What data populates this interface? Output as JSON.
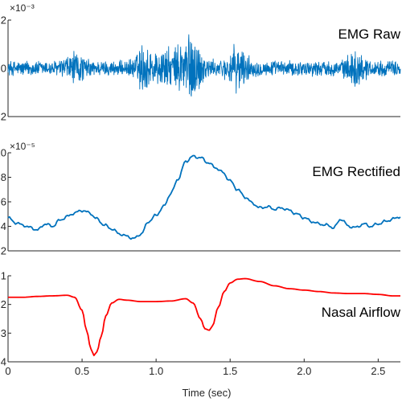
{
  "chart_data": [
    {
      "type": "line",
      "title": "EMG Raw",
      "exponent_label": "×10⁻³",
      "xlim": [
        0,
        2.65
      ],
      "ylim": [
        -2,
        2
      ],
      "yticks": [
        -2,
        0,
        2
      ],
      "ytick_labels": [
        "2",
        "0",
        "2"
      ],
      "color": "#0072BD",
      "signal": {
        "baseline_amplitude": 0.35,
        "bursts": [
          {
            "t": 0.45,
            "amp": 0.45,
            "width": 0.07
          },
          {
            "t": 0.92,
            "amp": 0.85,
            "width": 0.06
          },
          {
            "t": 1.22,
            "amp": 1.45,
            "width": 0.09
          },
          {
            "t": 1.05,
            "amp": 0.6,
            "width": 0.06
          },
          {
            "t": 1.55,
            "amp": 0.75,
            "width": 0.07
          },
          {
            "t": 2.35,
            "amp": 0.55,
            "width": 0.06
          }
        ]
      }
    },
    {
      "type": "line",
      "title": "EMG Rectified",
      "exponent_label": "×10⁻⁵",
      "xlim": [
        0,
        2.65
      ],
      "ylim": [
        2,
        10
      ],
      "yticks": [
        2,
        4,
        6,
        8,
        10
      ],
      "ytick_labels": [
        "2",
        "4",
        "6",
        "8",
        "10"
      ],
      "color": "#0072BD",
      "x": [
        0,
        0.05,
        0.1,
        0.15,
        0.2,
        0.25,
        0.3,
        0.35,
        0.4,
        0.45,
        0.5,
        0.55,
        0.6,
        0.65,
        0.7,
        0.75,
        0.8,
        0.85,
        0.9,
        0.95,
        1.0,
        1.05,
        1.1,
        1.15,
        1.2,
        1.25,
        1.3,
        1.35,
        1.4,
        1.45,
        1.5,
        1.55,
        1.6,
        1.65,
        1.7,
        1.75,
        1.8,
        1.85,
        1.9,
        1.95,
        2.0,
        2.05,
        2.1,
        2.15,
        2.2,
        2.25,
        2.3,
        2.35,
        2.4,
        2.45,
        2.5,
        2.55,
        2.6,
        2.65
      ],
      "values": [
        4.7,
        4.3,
        4.1,
        3.9,
        3.7,
        4.2,
        4.0,
        4.5,
        4.8,
        5.1,
        5.3,
        5.1,
        4.6,
        4.1,
        3.8,
        3.4,
        3.2,
        3.0,
        3.4,
        4.4,
        4.9,
        5.6,
        6.7,
        7.9,
        9.3,
        9.7,
        9.6,
        9.2,
        8.8,
        8.4,
        7.7,
        7.0,
        6.4,
        5.9,
        5.5,
        5.6,
        5.4,
        5.5,
        5.3,
        5.0,
        4.7,
        4.4,
        4.2,
        4.1,
        3.9,
        4.6,
        4.0,
        3.9,
        4.2,
        4.0,
        4.2,
        4.4,
        4.6,
        4.8
      ]
    },
    {
      "type": "line",
      "title": "Nasal Airflow",
      "exponent_label": "",
      "xlim": [
        0,
        2.65
      ],
      "ylim": [
        -4,
        -1
      ],
      "yticks": [
        -1,
        -2,
        -3,
        -4
      ],
      "ytick_labels": [
        "1",
        "2",
        "3",
        "4"
      ],
      "color": "#FF0000",
      "xlabel": "Time (sec)",
      "xticks": [
        0,
        0.5,
        1.0,
        1.5,
        2.0,
        2.5
      ],
      "xtick_labels": [
        "0",
        "0.5",
        "1.0",
        "1.5",
        "2.0",
        "2.5"
      ],
      "x": [
        0,
        0.1,
        0.2,
        0.3,
        0.4,
        0.45,
        0.5,
        0.53,
        0.56,
        0.58,
        0.6,
        0.63,
        0.66,
        0.7,
        0.75,
        0.8,
        0.9,
        1.0,
        1.1,
        1.2,
        1.25,
        1.3,
        1.33,
        1.36,
        1.38,
        1.42,
        1.46,
        1.5,
        1.55,
        1.6,
        1.7,
        1.8,
        1.9,
        2.0,
        2.1,
        2.2,
        2.3,
        2.4,
        2.5,
        2.6,
        2.65
      ],
      "values": [
        -1.75,
        -1.75,
        -1.72,
        -1.7,
        -1.68,
        -1.75,
        -2.2,
        -2.9,
        -3.55,
        -3.78,
        -3.65,
        -3.1,
        -2.4,
        -1.95,
        -1.82,
        -1.85,
        -1.9,
        -1.9,
        -1.88,
        -1.8,
        -1.95,
        -2.5,
        -2.85,
        -2.9,
        -2.75,
        -2.1,
        -1.55,
        -1.25,
        -1.12,
        -1.1,
        -1.2,
        -1.35,
        -1.45,
        -1.5,
        -1.55,
        -1.6,
        -1.62,
        -1.62,
        -1.65,
        -1.7,
        -1.7
      ]
    }
  ]
}
